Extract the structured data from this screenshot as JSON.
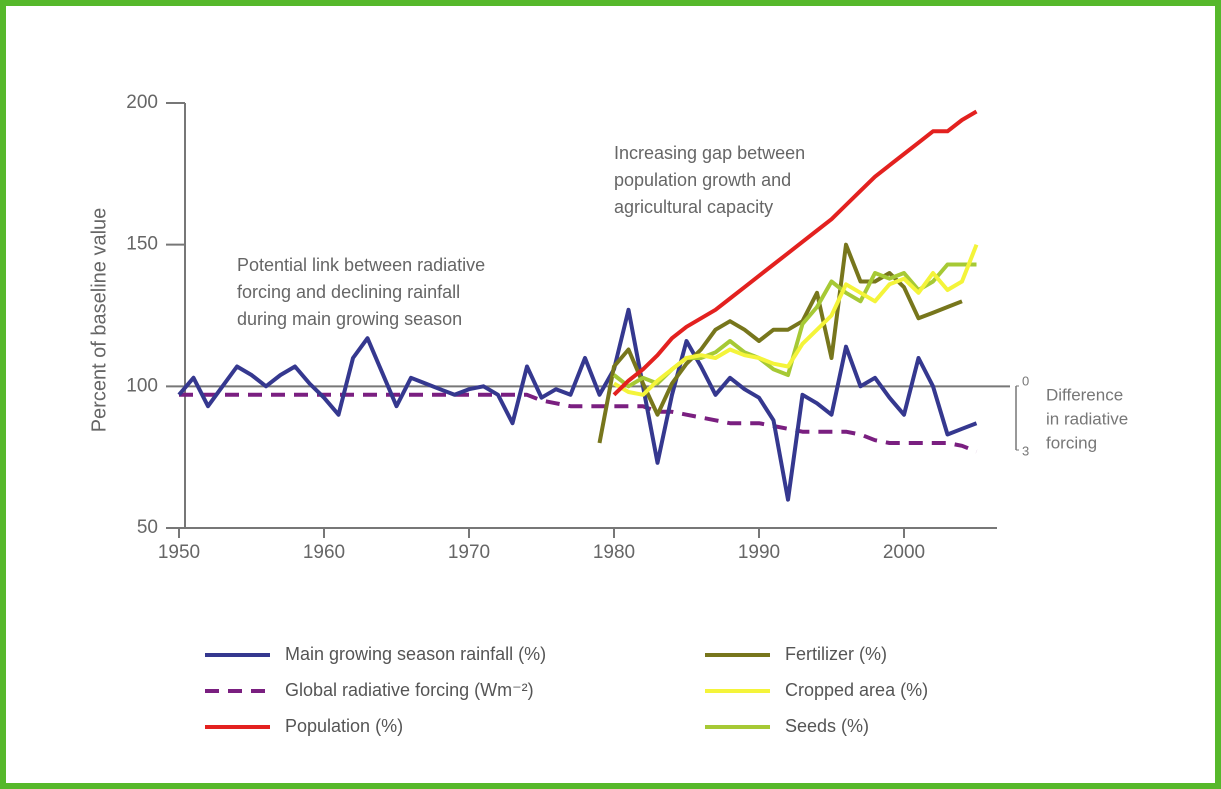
{
  "chart_data": {
    "type": "line",
    "y_label": "Percent of baseline value",
    "x": [
      1950,
      1951,
      1952,
      1953,
      1954,
      1955,
      1956,
      1957,
      1958,
      1959,
      1960,
      1961,
      1962,
      1963,
      1964,
      1965,
      1966,
      1967,
      1968,
      1969,
      1970,
      1971,
      1972,
      1973,
      1974,
      1975,
      1976,
      1977,
      1978,
      1979,
      1980,
      1981,
      1982,
      1983,
      1984,
      1985,
      1986,
      1987,
      1988,
      1989,
      1990,
      1991,
      1992,
      1993,
      1994,
      1995,
      1996,
      1997,
      1998,
      1999,
      2000,
      2001,
      2002,
      2003,
      2004,
      2005
    ],
    "xlim": [
      1950,
      2006
    ],
    "xticks": [
      1950,
      1960,
      1970,
      1980,
      1990,
      2000
    ],
    "ylim": [
      50,
      200
    ],
    "yticks": [
      50,
      100,
      150,
      200
    ],
    "reference_line": 100,
    "y2lim": [
      0,
      3
    ],
    "y2ticks": [
      0,
      3
    ],
    "y2_label": [
      "Difference",
      "in radiative",
      "forcing"
    ],
    "annotations": [
      [
        "Potential link between radiative",
        "forcing and declining rainfall",
        "during main growing season"
      ],
      [
        "Increasing gap between",
        "population growth and",
        "agricultural capacity"
      ]
    ],
    "series": [
      {
        "name": "Main growing season rainfall (%)",
        "color": "#35388f",
        "dashed": false,
        "values": [
          97,
          103,
          93,
          100,
          107,
          104,
          100,
          104,
          107,
          101,
          96,
          90,
          110,
          117,
          105,
          93,
          103,
          101,
          99,
          97,
          99,
          100,
          97,
          87,
          107,
          96,
          99,
          97,
          110,
          97,
          106,
          127,
          100,
          73,
          97,
          116,
          107,
          97,
          103,
          99,
          96,
          88,
          60,
          97,
          94,
          90,
          114,
          100,
          103,
          96,
          90,
          110,
          100,
          83,
          85,
          87
        ]
      },
      {
        "name": "Global radiative forcing (Wm⁻²)",
        "color": "#7a1f80",
        "dashed": true,
        "values": [
          97,
          97,
          97,
          97,
          97,
          97,
          97,
          97,
          97,
          97,
          97,
          97,
          97,
          97,
          97,
          97,
          97,
          97,
          97,
          97,
          97,
          97,
          97,
          97,
          97,
          95,
          94,
          93,
          93,
          93,
          93,
          93,
          93,
          91,
          91,
          90,
          89,
          88,
          87,
          87,
          87,
          86,
          85,
          84,
          84,
          84,
          84,
          83,
          81,
          80,
          80,
          80,
          80,
          80,
          79,
          77
        ]
      },
      {
        "name": "Population (%)",
        "color": "#e3211f",
        "dashed": false,
        "values": [
          null,
          null,
          null,
          null,
          null,
          null,
          null,
          null,
          null,
          null,
          null,
          null,
          null,
          null,
          null,
          null,
          null,
          null,
          null,
          null,
          null,
          null,
          null,
          null,
          null,
          null,
          null,
          null,
          null,
          null,
          97,
          102,
          106,
          111,
          117,
          121,
          124,
          127,
          131,
          135,
          139,
          143,
          147,
          151,
          155,
          159,
          164,
          169,
          174,
          178,
          182,
          186,
          190,
          190,
          194,
          197
        ]
      },
      {
        "name": "Fertilizer (%)",
        "color": "#77761c",
        "dashed": false,
        "values": [
          null,
          null,
          null,
          null,
          null,
          null,
          null,
          null,
          null,
          null,
          null,
          null,
          null,
          null,
          null,
          null,
          null,
          null,
          null,
          null,
          null,
          null,
          null,
          null,
          null,
          null,
          null,
          null,
          null,
          80,
          107,
          113,
          101,
          90,
          101,
          108,
          113,
          120,
          123,
          120,
          116,
          120,
          120,
          123,
          133,
          110,
          150,
          137,
          137,
          140,
          135,
          124,
          126,
          128,
          130,
          null
        ]
      },
      {
        "name": "Cropped area (%)",
        "color": "#f4f43a",
        "dashed": false,
        "values": [
          null,
          null,
          null,
          null,
          null,
          null,
          null,
          null,
          null,
          null,
          null,
          null,
          null,
          null,
          null,
          null,
          null,
          null,
          null,
          null,
          null,
          null,
          null,
          null,
          null,
          null,
          null,
          null,
          null,
          null,
          101,
          98,
          97,
          102,
          106,
          110,
          111,
          110,
          113,
          111,
          110,
          108,
          107,
          115,
          120,
          125,
          136,
          133,
          130,
          136,
          138,
          133,
          140,
          134,
          137,
          150
        ]
      },
      {
        "name": "Seeds (%)",
        "color": "#a6c935",
        "dashed": false,
        "values": [
          null,
          null,
          null,
          null,
          null,
          null,
          null,
          null,
          null,
          null,
          null,
          null,
          null,
          null,
          null,
          null,
          null,
          null,
          null,
          null,
          null,
          null,
          null,
          null,
          null,
          null,
          null,
          null,
          null,
          null,
          104,
          100,
          103,
          101,
          106,
          110,
          110,
          112,
          116,
          112,
          110,
          106,
          104,
          122,
          128,
          137,
          133,
          130,
          140,
          138,
          140,
          134,
          137,
          143,
          143,
          143
        ]
      }
    ]
  }
}
